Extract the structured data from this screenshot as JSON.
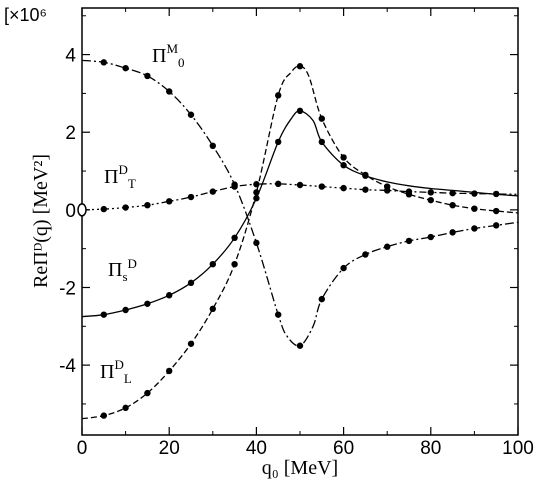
{
  "chart_data": {
    "type": "line",
    "xlabel": "q₀ [MeV]",
    "ylabel": "ReΠᴰ(q) [MeV²]",
    "y_multiplier": "[×10⁶",
    "xlim": [
      0,
      100
    ],
    "ylim": [
      -5.8,
      5.2
    ],
    "x_ticks": [
      0,
      20,
      40,
      60,
      80,
      100
    ],
    "y_ticks": [
      -4,
      -2,
      0,
      2,
      4
    ],
    "x_tick_labels": [
      "0",
      "20",
      "40",
      "60",
      "80",
      "100"
    ],
    "y_tick_labels": [
      "-4",
      "-2",
      "0",
      "2",
      "4"
    ],
    "series": [
      {
        "label_main": "Π",
        "label_sup": "M",
        "label_sub": "0",
        "line_style": "dash-dot",
        "x": [
          0,
          5,
          10,
          15,
          20,
          25,
          30,
          35,
          40,
          45,
          47,
          50,
          53,
          55,
          60,
          65,
          70,
          75,
          80,
          85,
          90,
          95,
          100
        ],
        "y": [
          3.85,
          3.8,
          3.65,
          3.45,
          3.05,
          2.45,
          1.65,
          0.65,
          -0.85,
          -2.7,
          -3.25,
          -3.5,
          -3.0,
          -2.3,
          -1.5,
          -1.15,
          -0.95,
          -0.8,
          -0.7,
          -0.58,
          -0.48,
          -0.4,
          -0.32
        ],
        "points_x": [
          5,
          10,
          15,
          20,
          25,
          30,
          35,
          40,
          45,
          50,
          55,
          60,
          65,
          70,
          75,
          80,
          85,
          90,
          95
        ],
        "points_y": [
          3.8,
          3.65,
          3.45,
          3.05,
          2.45,
          1.65,
          0.65,
          -0.85,
          -2.7,
          -3.5,
          -2.3,
          -1.5,
          -1.15,
          -0.95,
          -0.8,
          -0.7,
          -0.58,
          -0.48,
          -0.4
        ]
      },
      {
        "label_main": "Π",
        "label_sup": "D",
        "label_sub": "T",
        "line_style": "dash-dot-dot",
        "x": [
          0,
          5,
          10,
          15,
          20,
          25,
          30,
          35,
          40,
          45,
          50,
          55,
          60,
          65,
          70,
          75,
          80,
          85,
          90,
          95,
          100
        ],
        "y": [
          0.0,
          0.02,
          0.06,
          0.12,
          0.22,
          0.33,
          0.47,
          0.6,
          0.66,
          0.67,
          0.64,
          0.6,
          0.56,
          0.52,
          0.5,
          0.47,
          0.45,
          0.43,
          0.42,
          0.41,
          0.4
        ],
        "points_x": [
          0,
          5,
          10,
          15,
          20,
          25,
          30,
          35,
          40,
          45,
          50,
          55,
          60,
          65,
          70,
          75,
          80,
          85,
          90,
          95
        ],
        "points_y": [
          0.0,
          0.02,
          0.06,
          0.12,
          0.22,
          0.33,
          0.47,
          0.6,
          0.66,
          0.67,
          0.64,
          0.6,
          0.56,
          0.52,
          0.5,
          0.47,
          0.45,
          0.43,
          0.42,
          0.41
        ]
      },
      {
        "label_main": "Π",
        "label_sup": "D",
        "label_sub": "s",
        "line_style": "solid",
        "x": [
          0,
          5,
          10,
          15,
          20,
          25,
          30,
          35,
          40,
          45,
          48,
          50,
          53,
          55,
          60,
          65,
          70,
          75,
          80,
          85,
          90,
          95,
          100
        ],
        "y": [
          -2.75,
          -2.7,
          -2.58,
          -2.42,
          -2.2,
          -1.88,
          -1.4,
          -0.72,
          0.3,
          1.75,
          2.35,
          2.55,
          2.3,
          1.75,
          1.15,
          0.88,
          0.72,
          0.62,
          0.55,
          0.5,
          0.45,
          0.4,
          0.36
        ],
        "points_x": [
          5,
          10,
          15,
          20,
          25,
          30,
          35,
          40,
          45,
          50,
          55,
          60,
          65
        ],
        "points_y": [
          -2.7,
          -2.58,
          -2.42,
          -2.2,
          -1.88,
          -1.4,
          -0.72,
          0.3,
          1.75,
          2.55,
          1.75,
          1.15,
          0.88
        ]
      },
      {
        "label_main": "Π",
        "label_sup": "D",
        "label_sub": "L",
        "line_style": "dashed",
        "x": [
          0,
          5,
          10,
          15,
          20,
          25,
          30,
          35,
          40,
          45,
          48,
          50,
          52,
          55,
          60,
          65,
          70,
          75,
          80,
          85,
          90,
          95,
          100
        ],
        "y": [
          -5.38,
          -5.3,
          -5.1,
          -4.72,
          -4.15,
          -3.45,
          -2.55,
          -1.4,
          0.45,
          2.95,
          3.55,
          3.7,
          3.45,
          2.35,
          1.35,
          0.9,
          0.6,
          0.4,
          0.25,
          0.12,
          0.03,
          -0.03,
          -0.08
        ],
        "points_x": [
          5,
          10,
          15,
          20,
          25,
          30,
          35,
          40,
          45,
          50,
          55,
          60,
          65,
          70,
          75,
          80,
          85,
          90,
          95
        ],
        "points_y": [
          -5.3,
          -5.1,
          -4.72,
          -4.15,
          -3.45,
          -2.55,
          -1.4,
          0.45,
          2.95,
          3.7,
          2.35,
          1.35,
          0.9,
          0.6,
          0.4,
          0.25,
          0.12,
          0.03,
          -0.03
        ]
      }
    ]
  }
}
